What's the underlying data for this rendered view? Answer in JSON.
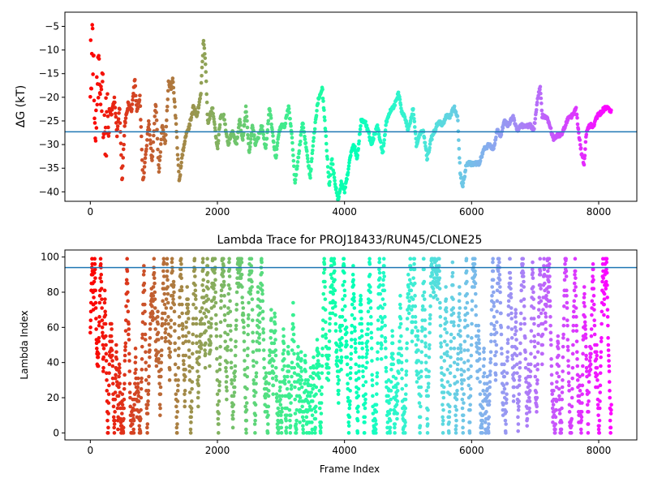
{
  "chart_data": [
    {
      "type": "scatter",
      "title": "",
      "xlabel": "",
      "ylabel": "ΔG (kT)",
      "xlim": [
        -400,
        8600
      ],
      "ylim": [
        -42,
        -2
      ],
      "xticks": [
        0,
        2000,
        4000,
        6000,
        8000
      ],
      "yticks": [
        -40,
        -35,
        -30,
        -25,
        -20,
        -15,
        -10,
        -5
      ],
      "hline": -27.3,
      "hline_color": "#1f77b4",
      "colormap": "rainbow",
      "trace_keypoints": [
        [
          0,
          -16
        ],
        [
          40,
          -8
        ],
        [
          80,
          -24
        ],
        [
          120,
          -13
        ],
        [
          160,
          -18
        ],
        [
          200,
          -21
        ],
        [
          240,
          -28
        ],
        [
          280,
          -21
        ],
        [
          330,
          -24
        ],
        [
          380,
          -20
        ],
        [
          420,
          -28
        ],
        [
          460,
          -22
        ],
        [
          500,
          -38
        ],
        [
          540,
          -26
        ],
        [
          600,
          -21
        ],
        [
          650,
          -23
        ],
        [
          700,
          -16
        ],
        [
          730,
          -23
        ],
        [
          780,
          -20
        ],
        [
          830,
          -38
        ],
        [
          880,
          -31
        ],
        [
          920,
          -25
        ],
        [
          970,
          -34
        ],
        [
          1030,
          -21
        ],
        [
          1080,
          -36
        ],
        [
          1130,
          -26
        ],
        [
          1180,
          -30
        ],
        [
          1230,
          -17
        ],
        [
          1270,
          -18
        ],
        [
          1300,
          -16
        ],
        [
          1350,
          -26
        ],
        [
          1400,
          -38
        ],
        [
          1450,
          -32
        ],
        [
          1500,
          -28
        ],
        [
          1560,
          -26
        ],
        [
          1620,
          -22
        ],
        [
          1680,
          -24
        ],
        [
          1740,
          -19
        ],
        [
          1780,
          -8
        ],
        [
          1810,
          -12
        ],
        [
          1850,
          -26
        ],
        [
          1920,
          -22
        ],
        [
          2000,
          -31
        ],
        [
          2050,
          -24
        ],
        [
          2100,
          -24
        ],
        [
          2170,
          -30
        ],
        [
          2230,
          -27
        ],
        [
          2300,
          -30
        ],
        [
          2350,
          -25
        ],
        [
          2400,
          -29
        ],
        [
          2450,
          -22
        ],
        [
          2500,
          -32
        ],
        [
          2550,
          -26
        ],
        [
          2600,
          -30
        ],
        [
          2650,
          -28
        ],
        [
          2700,
          -26
        ],
        [
          2760,
          -31
        ],
        [
          2820,
          -22
        ],
        [
          2880,
          -29
        ],
        [
          2920,
          -33
        ],
        [
          2960,
          -28
        ],
        [
          3000,
          -26
        ],
        [
          3060,
          -26
        ],
        [
          3120,
          -22
        ],
        [
          3170,
          -28
        ],
        [
          3220,
          -38
        ],
        [
          3280,
          -32
        ],
        [
          3340,
          -25
        ],
        [
          3400,
          -31
        ],
        [
          3460,
          -37
        ],
        [
          3520,
          -28
        ],
        [
          3580,
          -21
        ],
        [
          3650,
          -18
        ],
        [
          3700,
          -27
        ],
        [
          3760,
          -39
        ],
        [
          3800,
          -33
        ],
        [
          3850,
          -38
        ],
        [
          3900,
          -42
        ],
        [
          3950,
          -38
        ],
        [
          4000,
          -40
        ],
        [
          4050,
          -36
        ],
        [
          4100,
          -32
        ],
        [
          4150,
          -30
        ],
        [
          4200,
          -33
        ],
        [
          4260,
          -25
        ],
        [
          4320,
          -25
        ],
        [
          4370,
          -27
        ],
        [
          4420,
          -30
        ],
        [
          4470,
          -28
        ],
        [
          4520,
          -26
        ],
        [
          4560,
          -29
        ],
        [
          4600,
          -32
        ],
        [
          4660,
          -25
        ],
        [
          4720,
          -23
        ],
        [
          4780,
          -22
        ],
        [
          4850,
          -19
        ],
        [
          4900,
          -23
        ],
        [
          4950,
          -24
        ],
        [
          5000,
          -27
        ],
        [
          5040,
          -25
        ],
        [
          5080,
          -22
        ],
        [
          5130,
          -30
        ],
        [
          5180,
          -28
        ],
        [
          5240,
          -27
        ],
        [
          5300,
          -33
        ],
        [
          5360,
          -29
        ],
        [
          5420,
          -27
        ],
        [
          5480,
          -25
        ],
        [
          5540,
          -26
        ],
        [
          5600,
          -24
        ],
        [
          5660,
          -24
        ],
        [
          5720,
          -22
        ],
        [
          5780,
          -24
        ],
        [
          5820,
          -36
        ],
        [
          5860,
          -39
        ],
        [
          5920,
          -34
        ],
        [
          5980,
          -34
        ],
        [
          6050,
          -34
        ],
        [
          6120,
          -34
        ],
        [
          6200,
          -31
        ],
        [
          6280,
          -30
        ],
        [
          6350,
          -31
        ],
        [
          6400,
          -27
        ],
        [
          6460,
          -28
        ],
        [
          6520,
          -25
        ],
        [
          6580,
          -26
        ],
        [
          6650,
          -24
        ],
        [
          6720,
          -27
        ],
        [
          6780,
          -26
        ],
        [
          6850,
          -26
        ],
        [
          6920,
          -26
        ],
        [
          6980,
          -27
        ],
        [
          7040,
          -20
        ],
        [
          7080,
          -18
        ],
        [
          7110,
          -24
        ],
        [
          7170,
          -24
        ],
        [
          7230,
          -26
        ],
        [
          7290,
          -29
        ],
        [
          7350,
          -28
        ],
        [
          7410,
          -28
        ],
        [
          7470,
          -26
        ],
        [
          7530,
          -24
        ],
        [
          7590,
          -24
        ],
        [
          7640,
          -22
        ],
        [
          7680,
          -27
        ],
        [
          7730,
          -32
        ],
        [
          7770,
          -34
        ],
        [
          7810,
          -27
        ],
        [
          7860,
          -26
        ],
        [
          7920,
          -26
        ],
        [
          7980,
          -24
        ],
        [
          8050,
          -23
        ],
        [
          8120,
          -22
        ],
        [
          8200,
          -23
        ]
      ]
    },
    {
      "type": "scatter",
      "title": "Lambda Trace for PROJ18433/RUN45/CLONE25",
      "xlabel": "Frame Index",
      "ylabel": "Lambda Index",
      "xlim": [
        -400,
        8600
      ],
      "ylim": [
        -4,
        104
      ],
      "xticks": [
        0,
        2000,
        4000,
        6000,
        8000
      ],
      "yticks": [
        0,
        20,
        40,
        60,
        80,
        100
      ],
      "hline": 94,
      "hline_color": "#1f77b4",
      "colormap": "rainbow",
      "lambda_min": 0,
      "lambda_max": 99,
      "n_frames": 8200
    }
  ]
}
